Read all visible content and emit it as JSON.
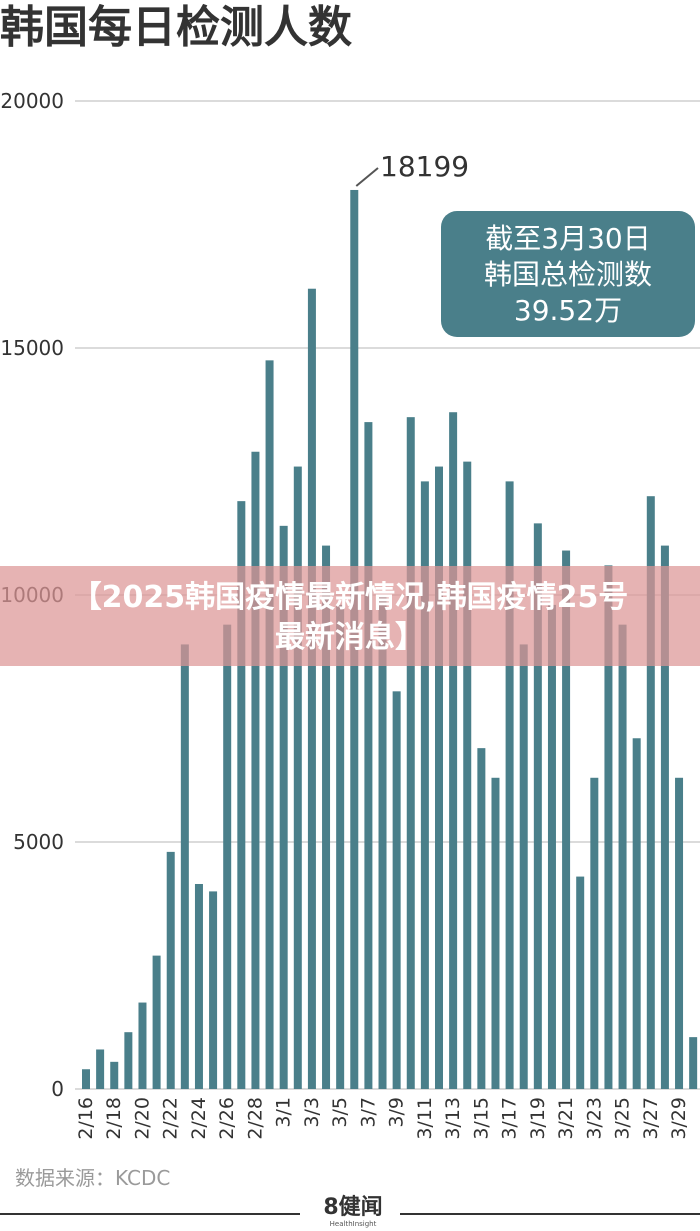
{
  "title": "韩国每日检测人数",
  "chart_data": {
    "type": "bar",
    "title": "韩国每日检测人数",
    "ylim": [
      0,
      20000
    ],
    "yticks": [
      0,
      5000,
      10000,
      15000,
      20000
    ],
    "grid": true,
    "color": "#4a7f8a",
    "categories": [
      "2/16",
      "2/17",
      "2/18",
      "2/19",
      "2/20",
      "2/21",
      "2/22",
      "2/23",
      "2/24",
      "2/25",
      "2/26",
      "2/27",
      "2/28",
      "2/29",
      "3/1",
      "3/2",
      "3/3",
      "3/4",
      "3/5",
      "3/6",
      "3/7",
      "3/8",
      "3/9",
      "3/10",
      "3/11",
      "3/12",
      "3/13",
      "3/14",
      "3/15",
      "3/16",
      "3/17",
      "3/18",
      "3/19",
      "3/20",
      "3/21",
      "3/22",
      "3/23",
      "3/24",
      "3/25",
      "3/26",
      "3/27",
      "3/28",
      "3/29",
      "3/30"
    ],
    "xtick_labels": [
      "2/16",
      "2/18",
      "2/20",
      "2/22",
      "2/24",
      "2/26",
      "2/28",
      "3/1",
      "3/3",
      "3/5",
      "3/7",
      "3/9",
      "3/11",
      "3/13",
      "3/15",
      "3/17",
      "3/19",
      "3/21",
      "3/23",
      "3/25",
      "3/27",
      "3/29"
    ],
    "xtick_categories": [
      "2/16",
      "2/18",
      "2/20",
      "2/22",
      "2/24",
      "2/26",
      "2/28",
      "3/1",
      "3/3",
      "3/5",
      "3/7",
      "3/9",
      "3/11",
      "3/13",
      "3/15",
      "3/17",
      "3/19",
      "3/21",
      "3/23",
      "3/25",
      "3/27",
      "3/29"
    ],
    "values": [
      400,
      800,
      550,
      1150,
      1750,
      2700,
      4800,
      9000,
      4150,
      4000,
      9400,
      11900,
      12900,
      14750,
      11400,
      12600,
      16200,
      11000,
      9800,
      18199,
      13500,
      10000,
      8050,
      13600,
      12300,
      12600,
      13700,
      12700,
      6900,
      6300,
      12300,
      9000,
      11450,
      9800,
      10900,
      4300,
      6300,
      10600,
      9400,
      7100,
      12000,
      11000,
      6300,
      1050
    ],
    "annotation": {
      "label": "18199",
      "category": "3/6"
    },
    "callout": [
      "截至3月30日",
      "韩国总检测数",
      "39.52万"
    ]
  },
  "banner": {
    "line1": "【2025韩国疫情最新情况,韩国疫情25号",
    "line2": "最新消息】"
  },
  "source": "数据来源：KCDC",
  "logo": {
    "main": "8健闻",
    "sub": "HealthInsight"
  }
}
